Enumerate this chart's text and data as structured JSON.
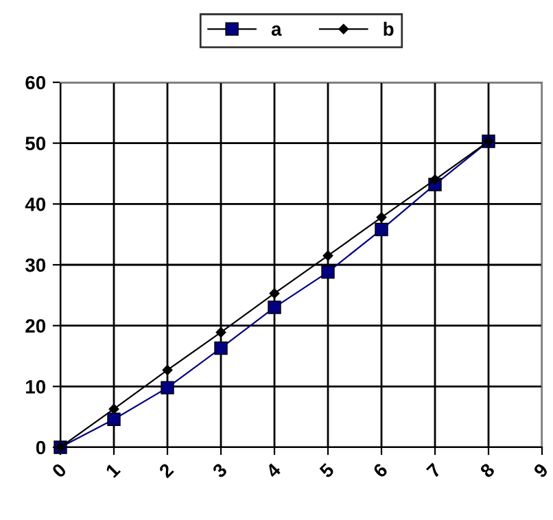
{
  "chart_data": {
    "type": "line",
    "x": [
      0,
      1,
      2,
      3,
      4,
      5,
      6,
      7,
      8
    ],
    "series": [
      {
        "name": "a",
        "color": "#000080",
        "values": [
          0,
          4.6,
          9.8,
          16.3,
          23,
          28.8,
          35.8,
          43.2,
          50.3
        ],
        "marker": "square"
      },
      {
        "name": "b",
        "color": "#000000",
        "values": [
          0,
          6.3,
          12.7,
          18.9,
          25.3,
          31.5,
          37.8,
          44,
          50.3
        ],
        "marker": "diamond"
      }
    ],
    "xlim": [
      0,
      9
    ],
    "xticks": [
      0,
      1,
      2,
      3,
      4,
      5,
      6,
      7,
      8,
      9
    ],
    "ylim": [
      0,
      60
    ],
    "yticks": [
      0,
      10,
      20,
      30,
      40,
      50,
      60
    ],
    "grid": true,
    "legend": "top",
    "line_style": "solid"
  }
}
